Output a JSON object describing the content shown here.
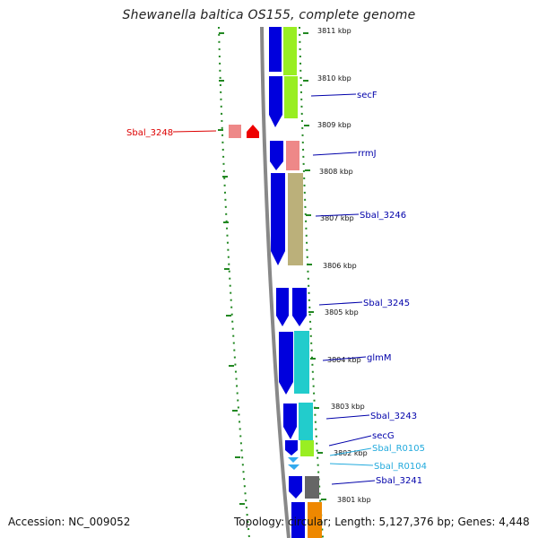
{
  "title": "Shewanella baltica OS155, complete genome",
  "footer": {
    "accession": "Accession: NC_009052",
    "summary": "Topology: circular; Length: 5,127,376 bp; Genes: 4,448"
  },
  "scale_labels": [
    "3811 kbp",
    "3810 kbp",
    "3809 kbp",
    "3808 kbp",
    "3807 kbp",
    "3806 kbp",
    "3805 kbp",
    "3804 kbp",
    "3803 kbp",
    "3802 kbp",
    "3801 kbp"
  ],
  "gene_labels": [
    {
      "text": "Sbal_3248",
      "color": "#dd0000"
    },
    {
      "text": "secF",
      "color": "#0000aa"
    },
    {
      "text": "rrmJ",
      "color": "#0000aa"
    },
    {
      "text": "Sbal_3246",
      "color": "#0000aa"
    },
    {
      "text": "Sbal_3245",
      "color": "#0000aa"
    },
    {
      "text": "glmM",
      "color": "#0000aa"
    },
    {
      "text": "Sbal_3243",
      "color": "#0000aa"
    },
    {
      "text": "secG",
      "color": "#0000aa"
    },
    {
      "text": "Sbal_R0105",
      "color": "#22aadd"
    },
    {
      "text": "Sbal_R0104",
      "color": "#22aadd"
    },
    {
      "text": "Sbal_3241",
      "color": "#0000aa"
    }
  ],
  "colors": {
    "cds": "#0000dd",
    "backbone": "#888888",
    "gc_skew": "#228822",
    "red_feature": "#ee0000"
  }
}
